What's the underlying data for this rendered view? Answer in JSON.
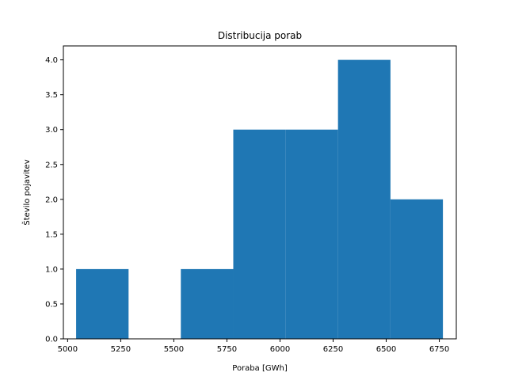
{
  "chart_data": {
    "type": "bar",
    "subtype": "histogram",
    "title": "Distribucija porab",
    "xlabel": "Poraba [GWh]",
    "ylabel": "Število pojavitev",
    "xlim": [
      4980,
      6830
    ],
    "ylim": [
      0,
      4.2
    ],
    "xticks": [
      5000,
      5250,
      5500,
      5750,
      6000,
      6250,
      6500,
      6750
    ],
    "yticks": [
      0.0,
      0.5,
      1.0,
      1.5,
      2.0,
      2.5,
      3.0,
      3.5,
      4.0
    ],
    "xtick_labels": [
      "5000",
      "5250",
      "5500",
      "5750",
      "6000",
      "6250",
      "6500",
      "6750"
    ],
    "ytick_labels": [
      "0.0",
      "0.5",
      "1.0",
      "1.5",
      "2.0",
      "2.5",
      "3.0",
      "3.5",
      "4.0"
    ],
    "bins": [
      {
        "start": 5040,
        "end": 5287,
        "count": 1
      },
      {
        "start": 5287,
        "end": 5533,
        "count": 0
      },
      {
        "start": 5533,
        "end": 5780,
        "count": 1
      },
      {
        "start": 5780,
        "end": 6027,
        "count": 3
      },
      {
        "start": 6027,
        "end": 6273,
        "count": 3
      },
      {
        "start": 6273,
        "end": 6520,
        "count": 4
      },
      {
        "start": 6520,
        "end": 6767,
        "count": 2
      }
    ],
    "bar_color": "#1f77b4",
    "grid": false,
    "legend": false
  }
}
